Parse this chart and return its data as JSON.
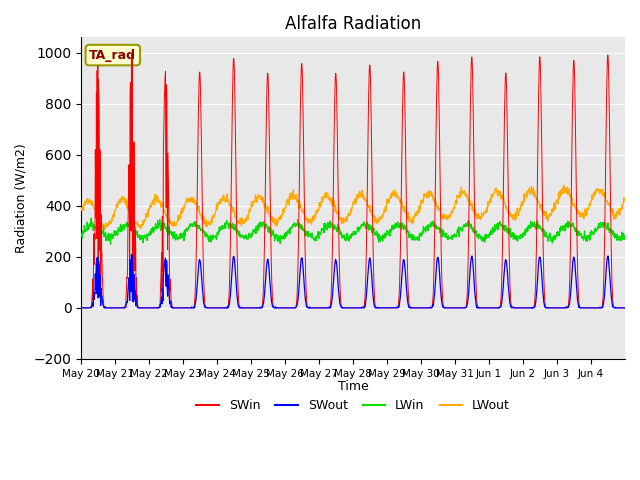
{
  "title": "Alfalfa Radiation",
  "ylabel": "Radiation (W/m2)",
  "xlabel": "Time",
  "annotation": "TA_rad",
  "ylim": [
    -200,
    1060
  ],
  "yticks": [
    -200,
    0,
    200,
    400,
    600,
    800,
    1000
  ],
  "x_labels": [
    "May 20",
    "May 21",
    "May 22",
    "May 23",
    "May 24",
    "May 25",
    "May 26",
    "May 27",
    "May 28",
    "May 29",
    "May 30",
    "May 31",
    "Jun 1",
    "Jun 2",
    "Jun 3",
    "Jun 4"
  ],
  "colors": {
    "SWin": "#ff0000",
    "SWout": "#0000ff",
    "LWin": "#00dd00",
    "LWout": "#ffaa00"
  },
  "background_color": "#e8e8e8",
  "fig_background": "#ffffff",
  "legend_labels": [
    "SWin",
    "SWout",
    "LWin",
    "LWout"
  ],
  "n_days": 16,
  "n_per_day": 96,
  "random_seed": 42
}
